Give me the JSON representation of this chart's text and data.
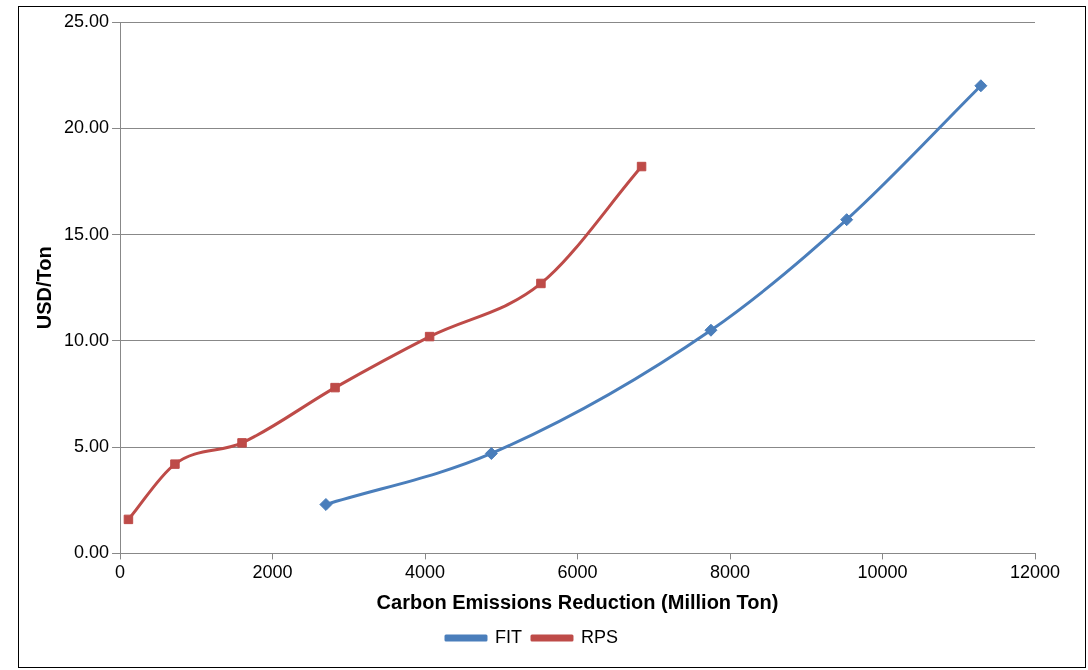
{
  "chart_data": {
    "type": "line",
    "xlabel": "Carbon Emissions Reduction (Million Ton)",
    "ylabel": "USD/Ton",
    "xlim": [
      0,
      12000
    ],
    "xticks": [
      0,
      2000,
      4000,
      6000,
      8000,
      10000,
      12000
    ],
    "ylim": [
      0,
      25
    ],
    "yticks": [
      {
        "value": 0,
        "label": "0.00"
      },
      {
        "value": 5,
        "label": "5.00"
      },
      {
        "value": 10,
        "label": "10.00"
      },
      {
        "value": 15,
        "label": "15.00"
      },
      {
        "value": 20,
        "label": "20.00"
      },
      {
        "value": 25,
        "label": "25.00"
      }
    ],
    "grid": "y",
    "legend": "bottom",
    "series": [
      {
        "name": "FIT",
        "color": "#4a7ebb",
        "marker": "diamond",
        "x": [
          2700,
          4870,
          7750,
          9530,
          11290
        ],
        "values": [
          2.3,
          4.7,
          10.5,
          15.7,
          22.0
        ]
      },
      {
        "name": "RPS",
        "color": "#be4b48",
        "marker": "square",
        "x": [
          110,
          720,
          1600,
          2820,
          4060,
          5520,
          6840
        ],
        "values": [
          1.6,
          4.2,
          5.2,
          7.8,
          10.2,
          12.7,
          18.2
        ]
      }
    ]
  }
}
